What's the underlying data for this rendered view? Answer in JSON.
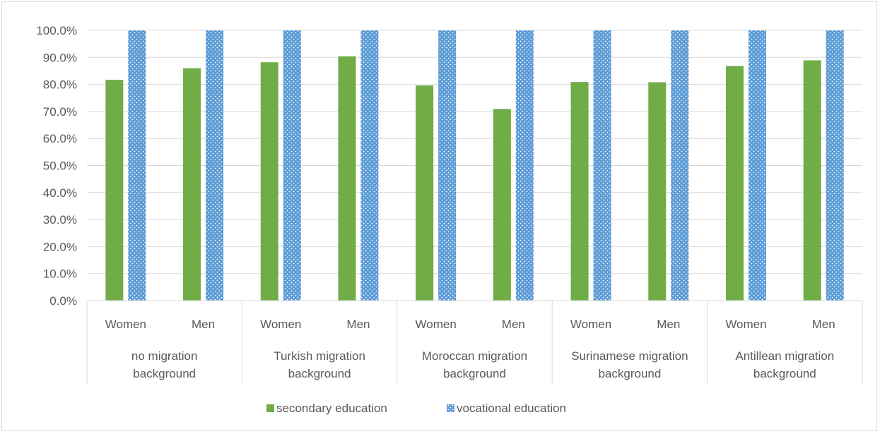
{
  "chart_data": {
    "type": "bar",
    "title": "",
    "xlabel": "",
    "ylabel": "",
    "ylim": [
      0,
      100
    ],
    "y_ticks": [
      "0.0%",
      "10.0%",
      "20.0%",
      "30.0%",
      "40.0%",
      "50.0%",
      "60.0%",
      "70.0%",
      "80.0%",
      "90.0%",
      "100.0%"
    ],
    "grid": true,
    "legend_position": "bottom",
    "groups": [
      {
        "label": "no migration background",
        "label_lines": [
          "no migration",
          "background"
        ],
        "categories": [
          "Women",
          "Men"
        ]
      },
      {
        "label": "Turkish migration background",
        "label_lines": [
          "Turkish migration",
          "background"
        ],
        "categories": [
          "Women",
          "Men"
        ]
      },
      {
        "label": "Moroccan migration background",
        "label_lines": [
          "Moroccan migration",
          "background"
        ],
        "categories": [
          "Women",
          "Men"
        ]
      },
      {
        "label": "Surinamese migration background",
        "label_lines": [
          "Surinamese migration",
          "background"
        ],
        "categories": [
          "Women",
          "Men"
        ]
      },
      {
        "label": "Antillean migration background",
        "label_lines": [
          "Antillean migration",
          "background"
        ],
        "categories": [
          "Women",
          "Men"
        ]
      }
    ],
    "series": [
      {
        "name": "secondary education",
        "color": "#70ad47",
        "pattern": "solid",
        "values": [
          81.7,
          86.0,
          88.2,
          90.4,
          79.6,
          70.9,
          80.9,
          80.8,
          86.8,
          88.9
        ]
      },
      {
        "name": "vocational education",
        "color": "#5b9bd5",
        "pattern": "dotted",
        "values": [
          100.0,
          100.0,
          100.0,
          100.0,
          100.0,
          100.0,
          100.0,
          100.0,
          100.0,
          100.0
        ]
      }
    ]
  }
}
